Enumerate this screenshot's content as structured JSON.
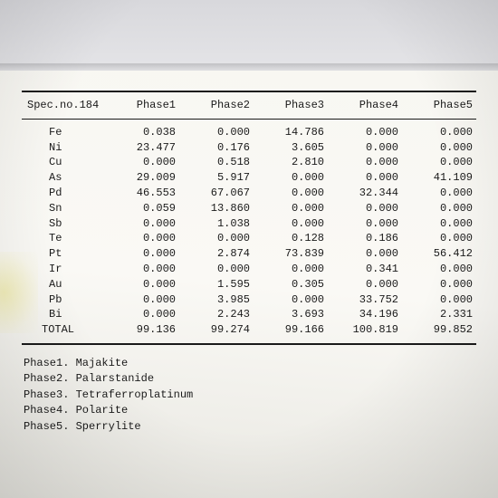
{
  "table": {
    "header_first": "Spec.no.184",
    "columns": [
      "Phase1",
      "Phase2",
      "Phase3",
      "Phase4",
      "Phase5"
    ],
    "rows": [
      {
        "el": "Fe",
        "v": [
          "0.038",
          "0.000",
          "14.786",
          "0.000",
          "0.000"
        ]
      },
      {
        "el": "Ni",
        "v": [
          "23.477",
          "0.176",
          "3.605",
          "0.000",
          "0.000"
        ]
      },
      {
        "el": "Cu",
        "v": [
          "0.000",
          "0.518",
          "2.810",
          "0.000",
          "0.000"
        ]
      },
      {
        "el": "As",
        "v": [
          "29.009",
          "5.917",
          "0.000",
          "0.000",
          "41.109"
        ]
      },
      {
        "el": "Pd",
        "v": [
          "46.553",
          "67.067",
          "0.000",
          "32.344",
          "0.000"
        ]
      },
      {
        "el": "Sn",
        "v": [
          "0.059",
          "13.860",
          "0.000",
          "0.000",
          "0.000"
        ]
      },
      {
        "el": "Sb",
        "v": [
          "0.000",
          "1.038",
          "0.000",
          "0.000",
          "0.000"
        ]
      },
      {
        "el": "Te",
        "v": [
          "0.000",
          "0.000",
          "0.128",
          "0.186",
          "0.000"
        ]
      },
      {
        "el": "Pt",
        "v": [
          "0.000",
          "2.874",
          "73.839",
          "0.000",
          "56.412"
        ]
      },
      {
        "el": "Ir",
        "v": [
          "0.000",
          "0.000",
          "0.000",
          "0.341",
          "0.000"
        ]
      },
      {
        "el": "Au",
        "v": [
          "0.000",
          "1.595",
          "0.305",
          "0.000",
          "0.000"
        ]
      },
      {
        "el": "Pb",
        "v": [
          "0.000",
          "3.985",
          "0.000",
          "33.752",
          "0.000"
        ]
      },
      {
        "el": "Bi",
        "v": [
          "0.000",
          "2.243",
          "3.693",
          "34.196",
          "2.331"
        ]
      },
      {
        "el": "TOTAL",
        "v": [
          "99.136",
          "99.274",
          "99.166",
          "100.819",
          "99.852"
        ]
      }
    ],
    "col_widths": [
      "92px",
      "82px",
      "82px",
      "82px",
      "82px",
      "82px"
    ]
  },
  "legend": [
    "Phase1. Majakite",
    "Phase2. Palarstanide",
    "Phase3. Tetraferroplatinum",
    "Phase4. Polarite",
    "Phase5. Sperrylite"
  ],
  "colors": {
    "text": "#1a1a1a",
    "rule": "#1a1a1a",
    "paper": "#f8f7f2"
  },
  "typography": {
    "font": "Courier New",
    "size_pt": 12
  }
}
